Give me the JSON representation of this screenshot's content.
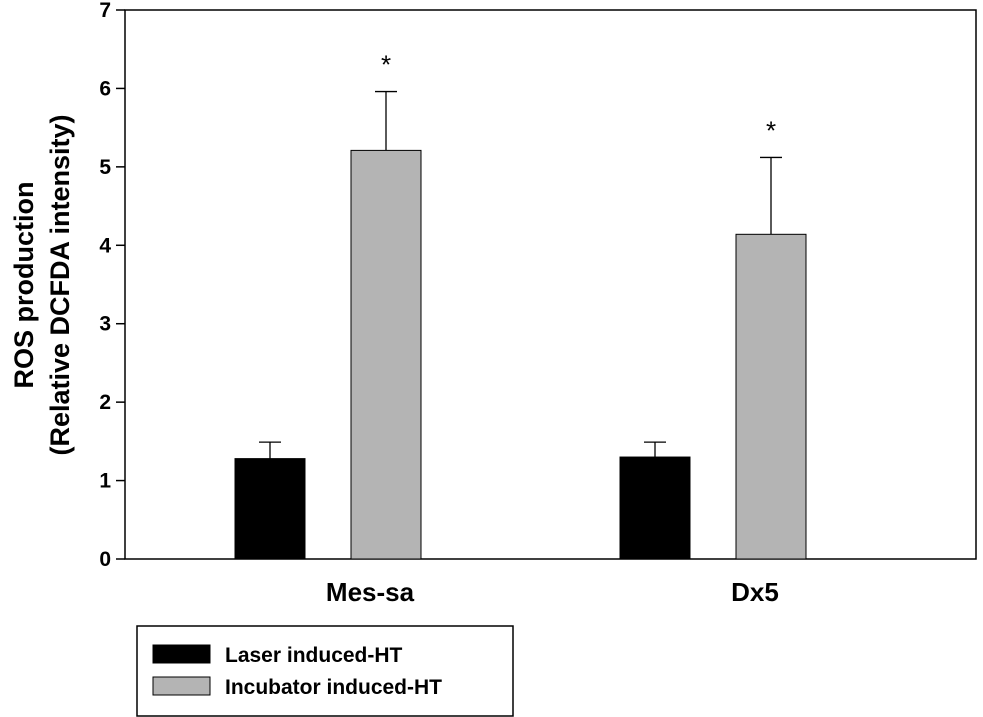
{
  "chart_data": {
    "type": "bar",
    "ylabel_line1": "ROS production",
    "ylabel_line2": "(Relative DCFDA intensity)",
    "categories": [
      "Mes-sa",
      "Dx5"
    ],
    "series": [
      {
        "name": "Laser induced-HT",
        "color": "#000000",
        "values": [
          1.28,
          1.3
        ],
        "errors": [
          0.21,
          0.19
        ],
        "annotations": [
          "",
          ""
        ]
      },
      {
        "name": "Incubator induced-HT",
        "color": "#b4b4b4",
        "values": [
          5.21,
          4.14
        ],
        "errors": [
          0.75,
          0.98
        ],
        "annotations": [
          "*",
          "*"
        ]
      }
    ],
    "ylim": [
      0,
      7
    ],
    "yticks": [
      "0",
      "1",
      "2",
      "3",
      "4",
      "5",
      "6",
      "7"
    ],
    "grid": false,
    "legend_position": "bottom-left, outside plot"
  }
}
